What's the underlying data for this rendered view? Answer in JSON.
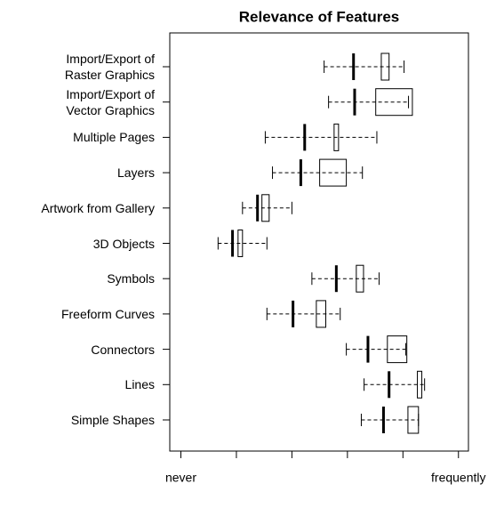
{
  "chart_data": {
    "type": "interval",
    "title": "Relevance of Features",
    "categories": [
      "Import/Export of\nRaster Graphics",
      "Import/Export of\nVector Graphics",
      "Multiple Pages",
      "Layers",
      "Artwork from Gallery",
      "3D Objects",
      "Symbols",
      "Freeform Curves",
      "Connectors",
      "Lines",
      "Simple Shapes"
    ],
    "whisker_low": [
      3.58,
      3.66,
      2.52,
      2.65,
      2.11,
      1.67,
      3.36,
      2.55,
      3.98,
      4.3,
      4.25
    ],
    "whisker_high": [
      5.02,
      5.1,
      4.53,
      4.27,
      3.0,
      2.55,
      4.57,
      3.87,
      5.05,
      5.39,
      5.28
    ],
    "mean": [
      4.11,
      4.13,
      3.23,
      3.16,
      2.38,
      1.93,
      3.8,
      3.02,
      4.37,
      4.75,
      4.65
    ],
    "box_low": [
      4.61,
      4.51,
      3.76,
      3.5,
      2.46,
      2.03,
      4.16,
      3.44,
      4.72,
      5.26,
      5.09
    ],
    "box_high": [
      4.75,
      5.17,
      3.84,
      3.98,
      2.59,
      2.11,
      4.29,
      3.61,
      5.07,
      5.34,
      5.28
    ],
    "xlim": [
      0.8,
      6.18
    ],
    "xticks": [
      1,
      2,
      3,
      4,
      5,
      6
    ],
    "xtick_labels": [
      {
        "value": 1,
        "label": "never"
      },
      {
        "value": 6,
        "label": "frequently"
      }
    ],
    "color": "#000000"
  }
}
